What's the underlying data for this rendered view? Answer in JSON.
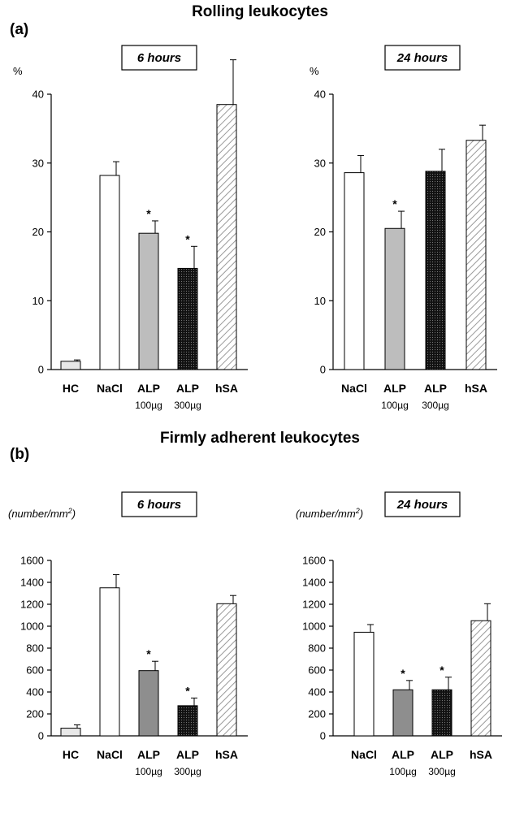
{
  "figure": {
    "section_a": {
      "label": "(a)",
      "title": "Rolling leukocytes"
    },
    "section_b": {
      "label": "(b)",
      "title": "Firmly adherent leukocytes"
    }
  },
  "patterns": {
    "HC": {
      "fill": "#e8e8e8"
    },
    "NaCl": {
      "fill": "#ffffff"
    },
    "ALP100": {
      "fill": "#bdbdbd"
    },
    "ALP100b": {
      "fill": "#8e8e8e"
    },
    "ALP300": {
      "fill": "#1a1a1a"
    },
    "hSA": {
      "fill": "hatch"
    }
  },
  "chart_data": [
    {
      "type": "bar",
      "time_label": "6 hours",
      "ylabel": "%",
      "ylim": [
        0,
        40
      ],
      "yticks": [
        "0",
        "10",
        "20",
        "30",
        "40"
      ],
      "categories": [
        "HC",
        "NaCl",
        "ALP",
        "ALP",
        "hSA"
      ],
      "dose_labels": [
        "",
        "",
        "100µg",
        "300µg",
        ""
      ],
      "values": [
        1.2,
        28.2,
        19.8,
        14.7,
        38.5
      ],
      "errors": [
        0.2,
        2.0,
        1.8,
        3.2,
        6.5
      ],
      "significant": [
        "",
        "",
        "*",
        "*",
        ""
      ],
      "fills": [
        "HC",
        "NaCl",
        "ALP100",
        "ALP300",
        "hSA"
      ]
    },
    {
      "type": "bar",
      "time_label": "24 hours",
      "ylabel": "%",
      "ylim": [
        0,
        40
      ],
      "yticks": [
        "0",
        "10",
        "20",
        "30",
        "40"
      ],
      "categories": [
        "NaCl",
        "ALP",
        "ALP",
        "hSA"
      ],
      "dose_labels": [
        "",
        "100µg",
        "300µg",
        ""
      ],
      "values": [
        28.6,
        20.5,
        28.8,
        33.3
      ],
      "errors": [
        2.5,
        2.5,
        3.2,
        2.2
      ],
      "significant": [
        "",
        "*",
        "",
        ""
      ],
      "fills": [
        "NaCl",
        "ALP100",
        "ALP300",
        "hSA"
      ]
    },
    {
      "type": "bar",
      "time_label": "6 hours",
      "ylabel": "(number/mm",
      "ylabel_sup": "2",
      "ylabel_end": ")",
      "ylim": [
        0,
        1600
      ],
      "yticks": [
        "0",
        "200",
        "400",
        "600",
        "800",
        "1000",
        "1200",
        "1400",
        "1600"
      ],
      "categories": [
        "HC",
        "NaCl",
        "ALP",
        "ALP",
        "hSA"
      ],
      "dose_labels": [
        "",
        "",
        "100µg",
        "300µg",
        ""
      ],
      "values": [
        70,
        1350,
        595,
        275,
        1205
      ],
      "errors": [
        30,
        120,
        85,
        70,
        75
      ],
      "significant": [
        "",
        "",
        "*",
        "*",
        ""
      ],
      "fills": [
        "HC",
        "NaCl",
        "ALP100b",
        "ALP300",
        "hSA"
      ]
    },
    {
      "type": "bar",
      "time_label": "24 hours",
      "ylabel": "(number/mm",
      "ylabel_sup": "2",
      "ylabel_end": ")",
      "ylim": [
        0,
        1600
      ],
      "yticks": [
        "0",
        "200",
        "400",
        "600",
        "800",
        "1000",
        "1200",
        "1400",
        "1600"
      ],
      "categories": [
        "NaCl",
        "ALP",
        "ALP",
        "hSA"
      ],
      "dose_labels": [
        "",
        "100µg",
        "300µg",
        ""
      ],
      "values": [
        945,
        420,
        420,
        1050
      ],
      "errors": [
        70,
        85,
        115,
        155
      ],
      "significant": [
        "",
        "*",
        "*",
        ""
      ],
      "fills": [
        "NaCl",
        "ALP100b",
        "ALP300",
        "hSA"
      ]
    }
  ]
}
